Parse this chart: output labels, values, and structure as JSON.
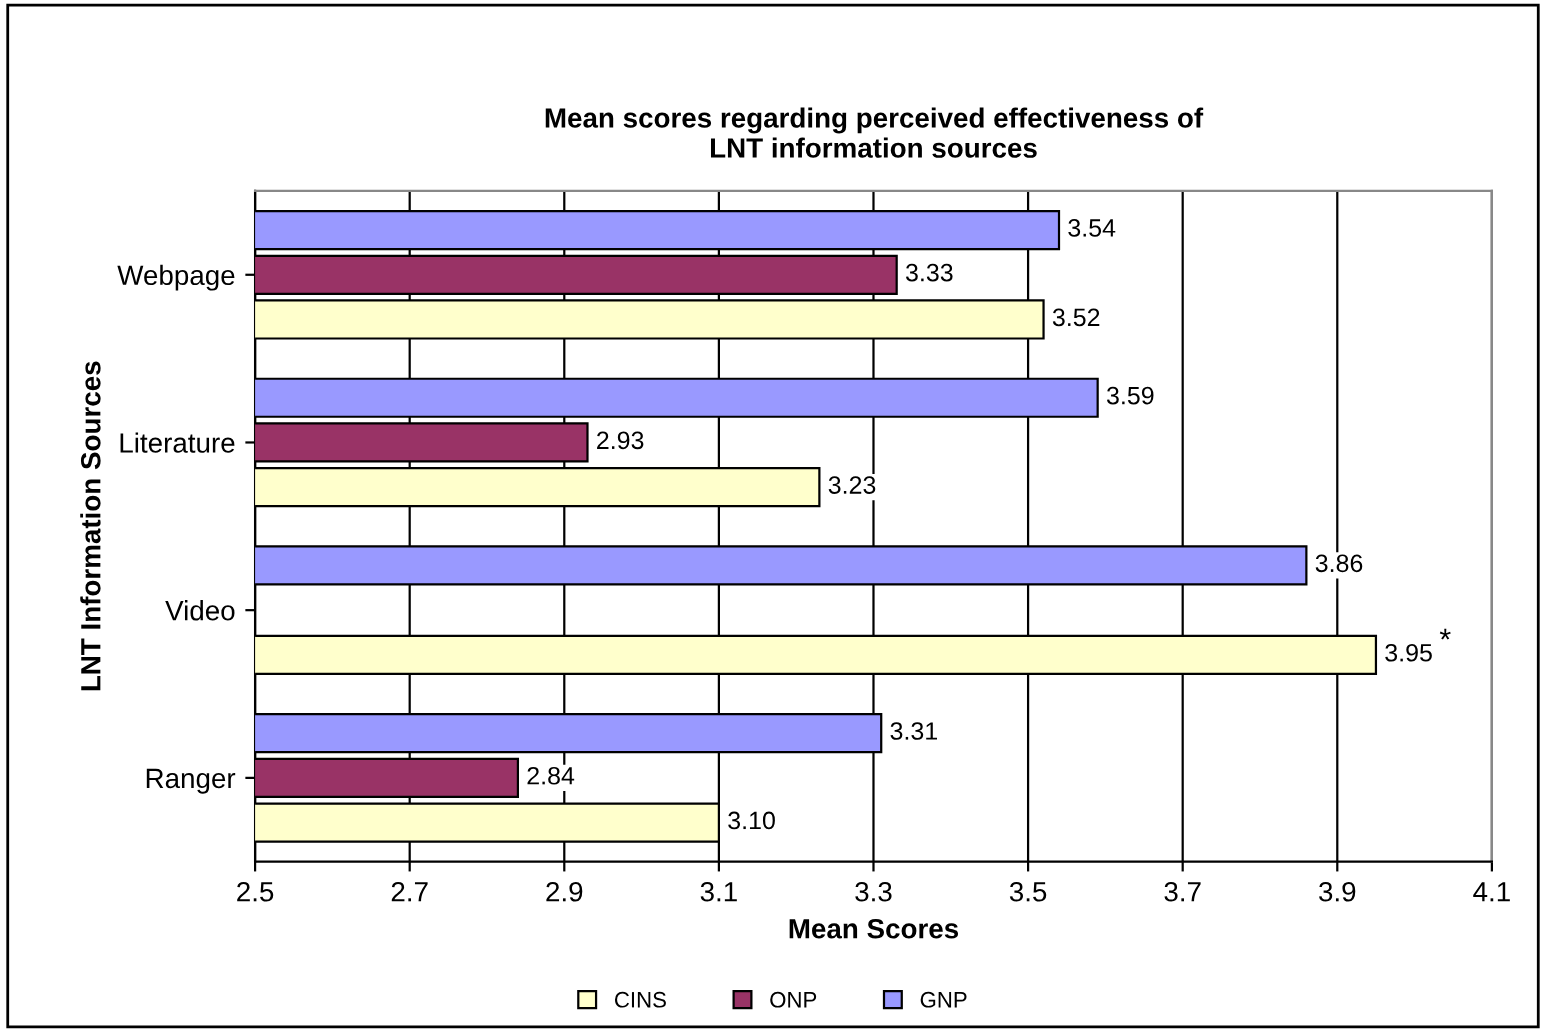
{
  "chart_data": {
    "type": "bar",
    "orientation": "horizontal",
    "title": "Mean scores regarding perceived effectiveness of\nLNT information sources",
    "xlabel": "Mean Scores",
    "ylabel": "LNT Information Sources",
    "categories": [
      "Webpage",
      "Literature",
      "Video",
      "Ranger"
    ],
    "series": [
      {
        "name": "CINS",
        "color": "#ffffcc",
        "values": [
          3.52,
          3.23,
          3.95,
          3.1
        ],
        "value_labels": [
          "3.52",
          "3.23",
          "3.95",
          "3.10"
        ]
      },
      {
        "name": "ONP",
        "color": "#993366",
        "values": [
          3.33,
          2.93,
          null,
          2.84
        ],
        "value_labels": [
          "3.33",
          "2.93",
          null,
          "2.84"
        ]
      },
      {
        "name": "GNP",
        "color": "#9999ff",
        "values": [
          3.54,
          3.59,
          3.86,
          3.31
        ],
        "value_labels": [
          "3.54",
          "3.59",
          "3.86",
          "3.31"
        ]
      }
    ],
    "xlim": [
      2.5,
      4.1
    ],
    "xticks": [
      2.5,
      2.7,
      2.9,
      3.1,
      3.3,
      3.5,
      3.7,
      3.9,
      4.1
    ],
    "grid": "x",
    "legend": "bottom",
    "annotations": [
      "*"
    ]
  }
}
